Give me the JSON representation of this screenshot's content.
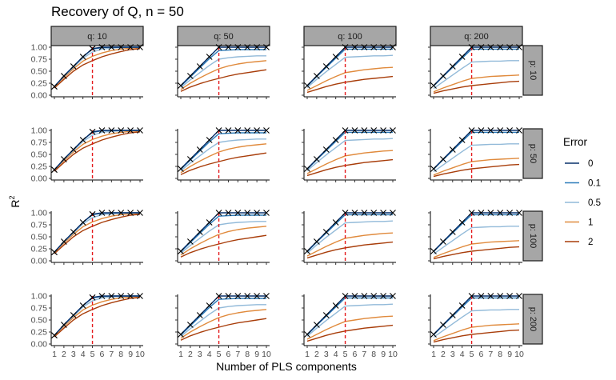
{
  "chart_data": {
    "type": "line",
    "title": "Recovery of Q, n = 50",
    "xlabel": "Number of PLS components",
    "ylabel": "R2",
    "ylabel_main": "R",
    "ylabel_sup": "2",
    "x": [
      1,
      2,
      3,
      4,
      5,
      6,
      7,
      8,
      9,
      10
    ],
    "x_ticks": [
      "1",
      "2",
      "3",
      "4",
      "5",
      "6",
      "7",
      "8",
      "9",
      "10"
    ],
    "ylim": [
      0,
      1
    ],
    "y_ticks": [
      "0.00",
      "0.25",
      "0.50",
      "0.75",
      "1.00"
    ],
    "vline_x": 5,
    "grid": false,
    "legend": {
      "title": "Error",
      "placement": "right",
      "entries": [
        "0",
        "0.1",
        "0.5",
        "1",
        "2"
      ]
    },
    "colors": {
      "0": "#08306b",
      "0.1": "#2b7bba",
      "0.5": "#92bad9",
      "1": "#e08a3c",
      "2": "#a83d0a",
      "vline": "#e41a1c",
      "markers": "#000000",
      "strip_fill": "#a6a6a6"
    },
    "col_strips": [
      "q: 10",
      "q: 50",
      "q: 100",
      "q: 200"
    ],
    "row_strips": [
      "p: 10",
      "p: 50",
      "p: 100",
      "p: 200"
    ],
    "column_series": [
      {
        "q": 10,
        "series": [
          {
            "name": "0",
            "values": [
              0.18,
              0.4,
              0.6,
              0.8,
              0.97,
              1.0,
              1.0,
              1.0,
              1.0,
              1.0
            ]
          },
          {
            "name": "0.1",
            "values": [
              0.18,
              0.4,
              0.6,
              0.8,
              0.96,
              0.99,
              1.0,
              1.0,
              1.0,
              1.0
            ]
          },
          {
            "name": "0.5",
            "values": [
              0.18,
              0.39,
              0.58,
              0.77,
              0.9,
              0.96,
              0.98,
              0.99,
              1.0,
              1.0
            ]
          },
          {
            "name": "1",
            "values": [
              0.17,
              0.37,
              0.55,
              0.71,
              0.81,
              0.88,
              0.93,
              0.96,
              0.98,
              0.99
            ]
          },
          {
            "name": "2",
            "values": [
              0.15,
              0.33,
              0.5,
              0.63,
              0.72,
              0.8,
              0.86,
              0.91,
              0.95,
              0.97
            ]
          }
        ]
      },
      {
        "q": 50,
        "series": [
          {
            "name": "0",
            "values": [
              0.2,
              0.4,
              0.6,
              0.8,
              1.0,
              1.0,
              1.0,
              1.0,
              1.0,
              1.0
            ]
          },
          {
            "name": "0.1",
            "values": [
              0.19,
              0.38,
              0.57,
              0.76,
              0.93,
              0.94,
              0.95,
              0.95,
              0.95,
              0.95
            ]
          },
          {
            "name": "0.5",
            "values": [
              0.16,
              0.32,
              0.47,
              0.62,
              0.75,
              0.78,
              0.8,
              0.81,
              0.82,
              0.82
            ]
          },
          {
            "name": "1",
            "values": [
              0.12,
              0.25,
              0.36,
              0.46,
              0.55,
              0.61,
              0.65,
              0.68,
              0.7,
              0.72
            ]
          },
          {
            "name": "2",
            "values": [
              0.08,
              0.17,
              0.24,
              0.3,
              0.35,
              0.4,
              0.44,
              0.47,
              0.5,
              0.53
            ]
          }
        ]
      },
      {
        "q": 100,
        "series": [
          {
            "name": "0",
            "values": [
              0.2,
              0.4,
              0.6,
              0.8,
              1.0,
              1.0,
              1.0,
              1.0,
              1.0,
              1.0
            ]
          },
          {
            "name": "0.1",
            "values": [
              0.19,
              0.39,
              0.58,
              0.77,
              0.96,
              0.96,
              0.96,
              0.96,
              0.96,
              0.96
            ]
          },
          {
            "name": "0.5",
            "values": [
              0.16,
              0.33,
              0.49,
              0.64,
              0.79,
              0.8,
              0.81,
              0.82,
              0.82,
              0.83
            ]
          },
          {
            "name": "1",
            "values": [
              0.1,
              0.2,
              0.3,
              0.39,
              0.47,
              0.5,
              0.53,
              0.55,
              0.57,
              0.58
            ]
          },
          {
            "name": "2",
            "values": [
              0.06,
              0.12,
              0.18,
              0.23,
              0.27,
              0.3,
              0.33,
              0.35,
              0.37,
              0.39
            ]
          }
        ]
      },
      {
        "q": 200,
        "series": [
          {
            "name": "0",
            "values": [
              0.2,
              0.4,
              0.6,
              0.8,
              1.0,
              1.0,
              1.0,
              1.0,
              1.0,
              1.0
            ]
          },
          {
            "name": "0.1",
            "values": [
              0.19,
              0.39,
              0.58,
              0.77,
              0.96,
              0.96,
              0.96,
              0.96,
              0.96,
              0.96
            ]
          },
          {
            "name": "0.5",
            "values": [
              0.14,
              0.28,
              0.42,
              0.56,
              0.69,
              0.7,
              0.71,
              0.71,
              0.72,
              0.72
            ]
          },
          {
            "name": "1",
            "values": [
              0.07,
              0.15,
              0.22,
              0.29,
              0.35,
              0.37,
              0.39,
              0.4,
              0.41,
              0.42
            ]
          },
          {
            "name": "2",
            "values": [
              0.04,
              0.09,
              0.13,
              0.17,
              0.2,
              0.22,
              0.24,
              0.26,
              0.28,
              0.29
            ]
          }
        ]
      }
    ]
  }
}
